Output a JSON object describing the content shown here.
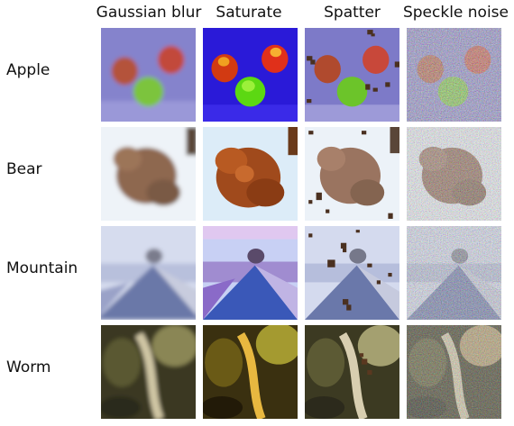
{
  "columns": [
    "Gaussian blur",
    "Saturate",
    "Spatter",
    "Speckle noise"
  ],
  "rows": [
    "Apple",
    "Bear",
    "Mountain",
    "Worm"
  ],
  "colors": {
    "apple_bg": "#7b78c8",
    "apple_bg_saturated": "#2a18d6",
    "bear_bg": "#e6eef6",
    "bear_fur": "#8a5a3c",
    "mountain_sky": "#c9d4ea",
    "mountain_slope": "#5b6aa0",
    "worm_bg": "#3e3a22",
    "worm_body": "#c8c0a0",
    "spatter": "#4a3020"
  }
}
